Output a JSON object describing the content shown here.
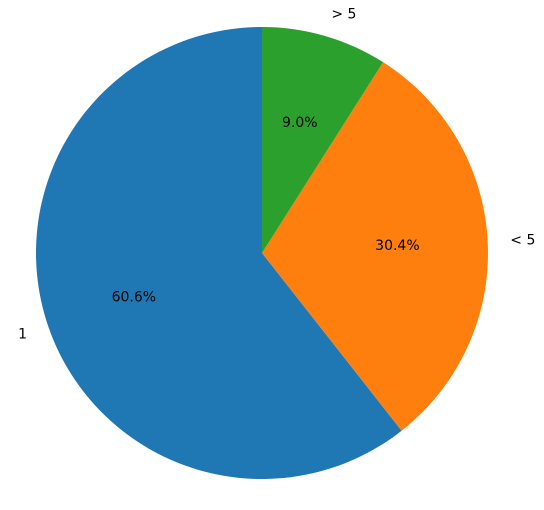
{
  "chart_data": {
    "type": "pie",
    "categories": [
      "1",
      "< 5",
      "> 5"
    ],
    "values": [
      60.6,
      30.4,
      9.0
    ],
    "value_labels": [
      "60.6%",
      "30.4%",
      "9.0%"
    ],
    "colors": [
      "#1f77b4",
      "#ff7f0e",
      "#2ca02c"
    ],
    "start_angle": 90,
    "counterclockwise": true
  }
}
